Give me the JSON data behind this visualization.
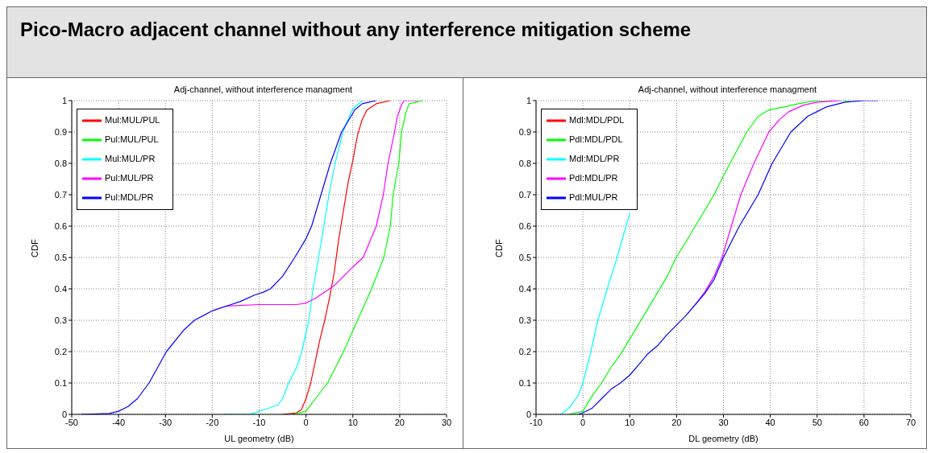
{
  "chart_data": [
    {
      "type": "line",
      "title": "Adj-channel, without interference managment",
      "xlabel": "UL geometry (dB)",
      "ylabel": "CDF",
      "annotations": [
        "Pico-Macro adjacent channel without any interference mitigation scheme"
      ],
      "xlim": [
        -50,
        30
      ],
      "xticks": [
        -50,
        -40,
        -30,
        -20,
        -10,
        0,
        10,
        20,
        30
      ],
      "ylim": [
        0,
        1
      ],
      "yticks": [
        0,
        0.1,
        0.2,
        0.3,
        0.4,
        0.5,
        0.6,
        0.7,
        0.8,
        0.9,
        1
      ],
      "grid": true,
      "legend": "top left",
      "marker": "none",
      "line_style": "solid",
      "series": [
        {
          "name": "Mul:MUL/PUL",
          "color": "#ff0000",
          "x": [
            -5,
            -2,
            -1,
            0,
            1,
            2,
            3,
            4,
            5,
            6,
            7,
            8,
            9,
            10,
            11,
            12,
            13,
            15,
            18
          ],
          "values": [
            0,
            0.005,
            0.015,
            0.05,
            0.1,
            0.17,
            0.24,
            0.3,
            0.37,
            0.45,
            0.56,
            0.65,
            0.74,
            0.81,
            0.89,
            0.94,
            0.97,
            0.99,
            1
          ]
        },
        {
          "name": "Pul:MUL/PUL",
          "color": "#00ff00",
          "x": [
            -3,
            0,
            2,
            4.6,
            8,
            11,
            14,
            16.6,
            18,
            18.6,
            19.8,
            20.4,
            21.3,
            22,
            25
          ],
          "values": [
            0,
            0.01,
            0.05,
            0.1,
            0.2,
            0.3,
            0.4,
            0.5,
            0.6,
            0.7,
            0.8,
            0.9,
            0.96,
            0.99,
            1
          ]
        },
        {
          "name": "Mul:MUL/PR",
          "color": "#00ffff",
          "x": [
            -17.4,
            -12,
            -10,
            -8,
            -6,
            -5,
            -3.7,
            -2,
            -0.9,
            0.6,
            1.5,
            2.7,
            3.8,
            4.9,
            6.2,
            7.9,
            9.8,
            12
          ],
          "values": [
            0,
            0,
            0.01,
            0.02,
            0.03,
            0.05,
            0.1,
            0.15,
            0.2,
            0.3,
            0.4,
            0.5,
            0.6,
            0.7,
            0.8,
            0.9,
            0.97,
            1
          ]
        },
        {
          "name": "Pul:MUL/PR",
          "color": "#ff00ff",
          "x": [
            -20,
            -17,
            -10,
            -2,
            0,
            2,
            4,
            6,
            8,
            10,
            12.2,
            15,
            16.5,
            17.5,
            18.9,
            19.5,
            20.5,
            21,
            24
          ],
          "values": [
            0.33,
            0.345,
            0.35,
            0.35,
            0.355,
            0.37,
            0.39,
            0.41,
            0.44,
            0.47,
            0.5,
            0.6,
            0.7,
            0.8,
            0.9,
            0.95,
            0.99,
            1,
            1
          ]
        },
        {
          "name": "Pul:MDL/PR",
          "color": "#0000ff",
          "x": [
            -48,
            -42,
            -40,
            -38,
            -36,
            -33.5,
            -29.8,
            -26,
            -23.8,
            -20,
            -17,
            -14,
            -11,
            -9,
            -7.6,
            -5,
            -2.4,
            0,
            1.2,
            3.2,
            5.2,
            7.6,
            10.4,
            12,
            15
          ],
          "values": [
            0,
            0.003,
            0.01,
            0.025,
            0.05,
            0.1,
            0.2,
            0.27,
            0.3,
            0.33,
            0.345,
            0.36,
            0.38,
            0.39,
            0.4,
            0.44,
            0.5,
            0.56,
            0.6,
            0.7,
            0.8,
            0.9,
            0.97,
            0.99,
            1
          ]
        }
      ]
    },
    {
      "type": "line",
      "title": "Adj-channel, without interference managment",
      "xlabel": "DL geometry (dB)",
      "ylabel": "CDF",
      "xlim": [
        -10,
        70
      ],
      "xticks": [
        -10,
        0,
        10,
        20,
        30,
        40,
        50,
        60,
        70
      ],
      "ylim": [
        0,
        1
      ],
      "yticks": [
        0,
        0.1,
        0.2,
        0.3,
        0.4,
        0.5,
        0.6,
        0.7,
        0.8,
        0.9,
        1
      ],
      "grid": true,
      "legend": "top left",
      "marker": "none",
      "line_style": "solid",
      "series": [
        {
          "name": "Mdl:MDL/PDL",
          "color": "#ff0000"
        },
        {
          "name": "Pdl:MDL/PDL",
          "color": "#00ff00",
          "x": [
            -3,
            0,
            2,
            4,
            6,
            8,
            10,
            12,
            14,
            16,
            18,
            19.9,
            22,
            24,
            26,
            28,
            30,
            31.4,
            35,
            37.4,
            39.7,
            43,
            46,
            50,
            57
          ],
          "values": [
            0,
            0.01,
            0.06,
            0.1,
            0.15,
            0.19,
            0.24,
            0.29,
            0.34,
            0.39,
            0.44,
            0.5,
            0.55,
            0.6,
            0.65,
            0.7,
            0.76,
            0.8,
            0.9,
            0.95,
            0.97,
            0.98,
            0.99,
            1,
            1
          ]
        },
        {
          "name": "Mdl:MDL/PR",
          "color": "#00ffff",
          "x": [
            -4.7,
            -3,
            -1,
            0,
            1.7,
            3.2,
            5.2,
            7.3,
            9.2,
            10
          ],
          "values": [
            0,
            0.02,
            0.06,
            0.1,
            0.2,
            0.3,
            0.4,
            0.5,
            0.6,
            0.64
          ]
        },
        {
          "name": "Pdl:MDL/PR",
          "color": "#ff00ff",
          "x": [
            24,
            26,
            28,
            29.7,
            31.7,
            33.7,
            36.5,
            39.7,
            42,
            44,
            47,
            50,
            55
          ],
          "values": [
            0.35,
            0.39,
            0.44,
            0.5,
            0.6,
            0.7,
            0.8,
            0.9,
            0.94,
            0.965,
            0.985,
            0.995,
            1
          ]
        },
        {
          "name": "Pdl:MUL/PR",
          "color": "#0000ff",
          "x": [
            -1,
            0,
            2,
            4,
            6,
            8,
            10,
            12,
            14,
            16,
            18,
            20,
            22,
            24,
            26,
            28,
            30,
            33.4,
            37.4,
            40.4,
            44.4,
            48,
            52,
            56,
            60,
            63
          ],
          "values": [
            0,
            0.005,
            0.02,
            0.05,
            0.08,
            0.1,
            0.125,
            0.16,
            0.195,
            0.22,
            0.255,
            0.285,
            0.315,
            0.35,
            0.385,
            0.43,
            0.5,
            0.6,
            0.7,
            0.8,
            0.9,
            0.95,
            0.98,
            0.995,
            1,
            1
          ]
        }
      ]
    }
  ]
}
